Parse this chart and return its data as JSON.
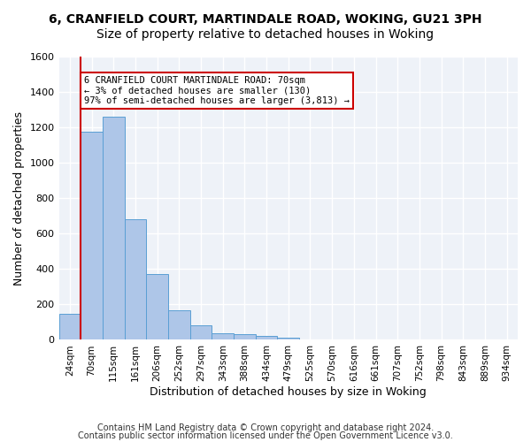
{
  "title1": "6, CRANFIELD COURT, MARTINDALE ROAD, WOKING, GU21 3PH",
  "title2": "Size of property relative to detached houses in Woking",
  "xlabel": "Distribution of detached houses by size in Woking",
  "ylabel": "Number of detached properties",
  "bar_values": [
    147,
    1178,
    1261,
    681,
    374,
    168,
    84,
    38,
    32,
    22,
    14,
    0,
    0,
    0,
    0,
    0,
    0,
    0,
    0,
    0,
    0
  ],
  "categories": [
    "24sqm",
    "70sqm",
    "115sqm",
    "161sqm",
    "206sqm",
    "252sqm",
    "297sqm",
    "343sqm",
    "388sqm",
    "434sqm",
    "479sqm",
    "525sqm",
    "570sqm",
    "616sqm",
    "661sqm",
    "707sqm",
    "752sqm",
    "798sqm",
    "843sqm",
    "889sqm",
    "934sqm"
  ],
  "bar_color": "#aec6e8",
  "bar_edge_color": "#5a9fd4",
  "vline_color": "#cc0000",
  "annotation_box_text": "6 CRANFIELD COURT MARTINDALE ROAD: 70sqm\n← 3% of detached houses are smaller (130)\n97% of semi-detached houses are larger (3,813) →",
  "box_edge_color": "#cc0000",
  "ylim": [
    0,
    1600
  ],
  "yticks": [
    0,
    200,
    400,
    600,
    800,
    1000,
    1200,
    1400,
    1600
  ],
  "footer1": "Contains HM Land Registry data © Crown copyright and database right 2024.",
  "footer2": "Contains public sector information licensed under the Open Government Licence v3.0.",
  "bg_color": "#eef2f8",
  "grid_color": "#ffffff",
  "title1_fontsize": 10,
  "title2_fontsize": 10,
  "xlabel_fontsize": 9,
  "ylabel_fontsize": 9,
  "annotation_fontsize": 7.5,
  "footer_fontsize": 7
}
